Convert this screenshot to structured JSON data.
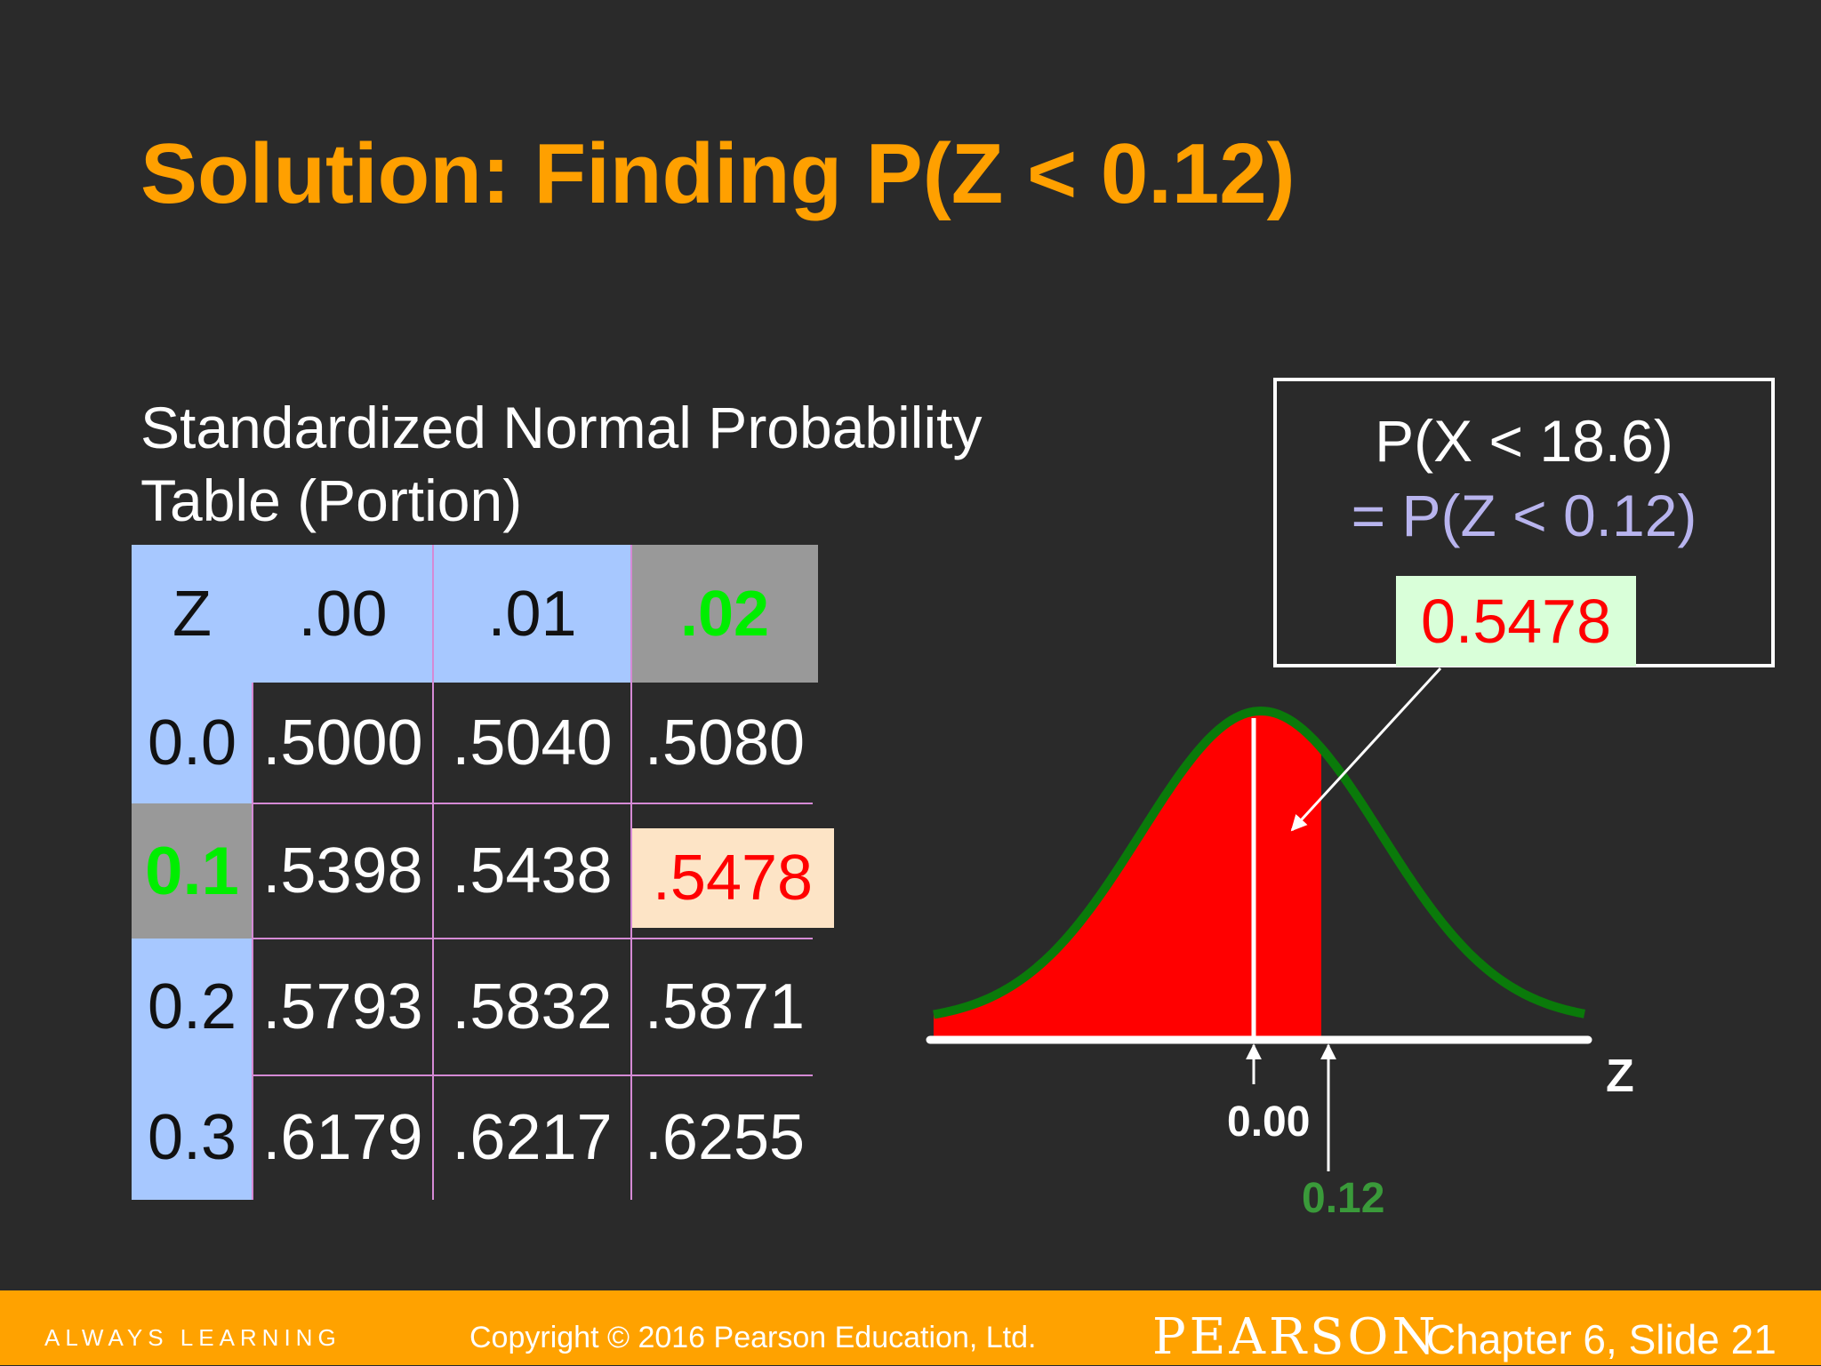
{
  "title": "Solution: Finding P(Z < 0.12)",
  "subtitle_line1": "Standardized Normal Probability",
  "subtitle_line2": "Table (Portion)",
  "table": {
    "headers": [
      "Z",
      ".00",
      ".01",
      ".02"
    ],
    "rows": [
      {
        "z": "0.0",
        "v00": ".5000",
        "v01": ".5040",
        "v02": ".5080"
      },
      {
        "z": "0.1",
        "v00": ".5398",
        "v01": ".5438",
        "v02": ".5478"
      },
      {
        "z": "0.2",
        "v00": ".5793",
        "v01": ".5832",
        "v02": ".5871"
      },
      {
        "z": "0.3",
        "v00": ".6179",
        "v01": ".6217",
        "v02": ".6255"
      }
    ]
  },
  "result": {
    "line1": "P(X < 18.6)",
    "line2": "= P(Z < 0.12)",
    "value": "0.5478"
  },
  "curve": {
    "axis_label": "Z",
    "mean_label": "0.00",
    "z_label": "0.12",
    "z_value": 0.12,
    "fill_color": "#ff0000",
    "curve_color": "#0a7a0a"
  },
  "footer": {
    "always_learning": "ALWAYS LEARNING",
    "copyright": "Copyright © 2016 Pearson Education, Ltd.",
    "brand": "PEARSON",
    "slide": "Chapter 6, Slide 21"
  }
}
